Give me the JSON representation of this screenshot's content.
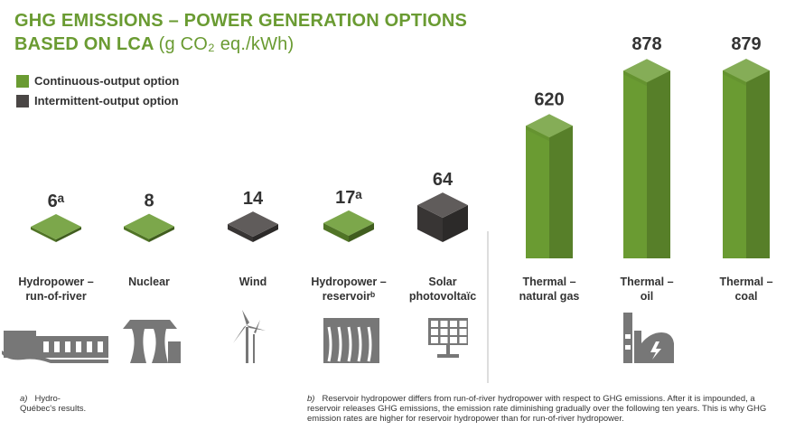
{
  "title": {
    "line1": "GHG EMISSIONS – POWER GENERATION OPTIONS",
    "line2_bold": "BASED ON LCA",
    "line2_unit": "(g CO₂ eq./kWh)"
  },
  "legend": [
    {
      "label": "Continuous-output option",
      "color": "#6a9b32"
    },
    {
      "label": "Intermittent-output option",
      "color": "#4a4645"
    }
  ],
  "colors": {
    "continuous": "#6a9b32",
    "intermittent": "#4a4645",
    "icon": "#777777"
  },
  "chart_data": {
    "type": "bar",
    "categories": [
      "Hydropower – run-of-river",
      "Nuclear",
      "Wind",
      "Hydropower – reservoirᵇ",
      "Solar photovoltaïc",
      "Thermal – natural gas",
      "Thermal – oil",
      "Thermal – coal"
    ],
    "category_lines": [
      [
        "Hydropower –",
        "run-of-river"
      ],
      [
        "Nuclear"
      ],
      [
        "Wind"
      ],
      [
        "Hydropower –",
        "reservoirᵇ"
      ],
      [
        "Solar",
        "photovoltaïc"
      ],
      [
        "Thermal –",
        "natural gas"
      ],
      [
        "Thermal –",
        "oil"
      ],
      [
        "Thermal –",
        "coal"
      ]
    ],
    "values": [
      6,
      8,
      14,
      17,
      64,
      620,
      878,
      879
    ],
    "value_labels": [
      "6ᵃ",
      "8",
      "14",
      "17ᵃ",
      "64",
      "620",
      "878",
      "879"
    ],
    "output_type": [
      "continuous",
      "continuous",
      "intermittent",
      "continuous",
      "intermittent",
      "continuous",
      "continuous",
      "continuous"
    ],
    "icons": [
      "dam-icon",
      "nuclear-plant-icon",
      "wind-turbine-icon",
      "reservoir-dam-icon",
      "solar-panel-icon",
      "",
      "thermal-plant-icon",
      ""
    ]
  },
  "footnotes": [
    {
      "mark": "a)",
      "text": "Hydro-Québec's results."
    },
    {
      "mark": "b)",
      "text": "Reservoir hydropower differs from run-of-river hydropower with respect to GHG emissions. After it is impounded, a reservoir releases GHG emissions, the emission rate diminishing gradually over the following ten years. This is why GHG emission rates are higher for reservoir hydropower than for run-of-river hydropower."
    }
  ]
}
